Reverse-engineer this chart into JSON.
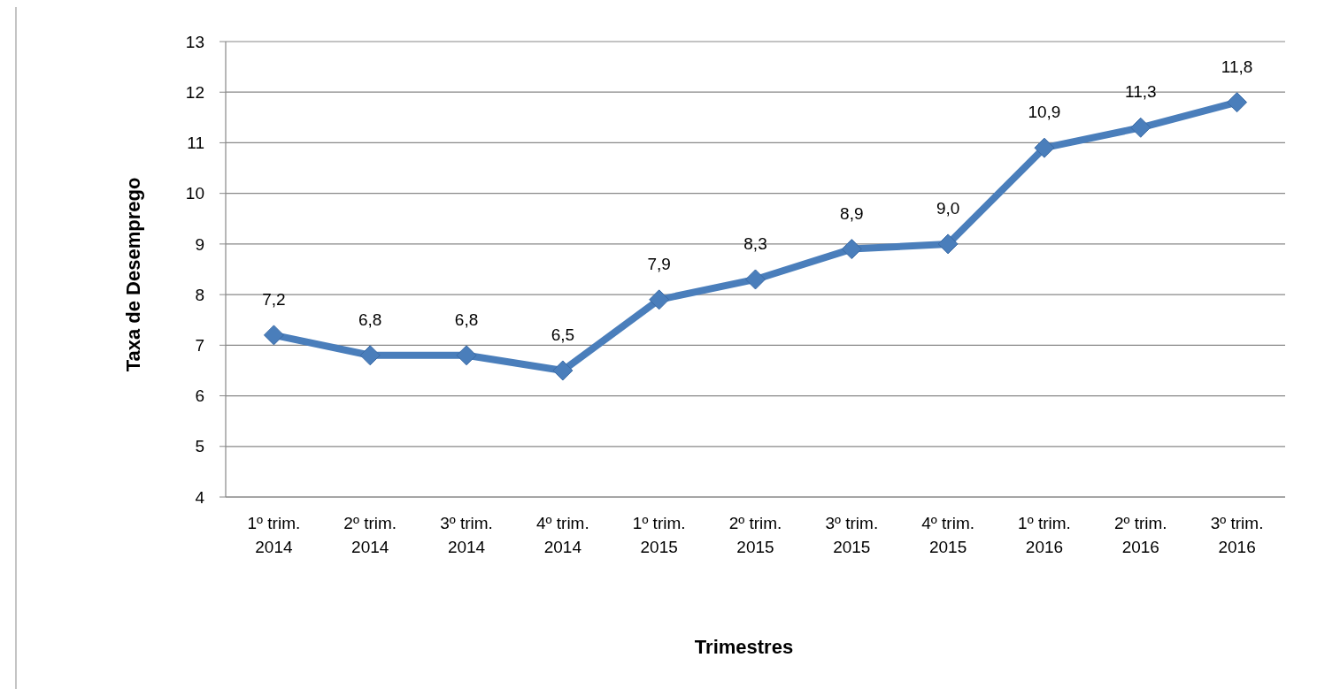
{
  "chart_data": {
    "type": "line",
    "xlabel": "Trimestres",
    "ylabel": "Taxa de Desemprego",
    "categories": [
      "1º trim. 2014",
      "2º trim. 2014",
      "3º trim. 2014",
      "4º trim. 2014",
      "1º trim. 2015",
      "2º trim. 2015",
      "3º trim. 2015",
      "4º trim. 2015",
      "1º trim. 2016",
      "2º trim. 2016",
      "3º trim. 2016"
    ],
    "series": [
      {
        "color": "#4a7ebb",
        "values": [
          7.2,
          6.8,
          6.8,
          6.5,
          7.9,
          8.3,
          8.9,
          9.0,
          10.9,
          11.3,
          11.8
        ],
        "value_labels": [
          "7,2",
          "6,8",
          "6,8",
          "6,5",
          "7,9",
          "8,3",
          "8,9",
          "9,0",
          "10,9",
          "11,3",
          "11,8"
        ]
      }
    ],
    "ylim": [
      4,
      13
    ],
    "yticks": [
      4,
      5,
      6,
      7,
      8,
      9,
      10,
      11,
      12,
      13
    ],
    "grid": "y",
    "marker": "diamond",
    "line_style": "solid"
  }
}
